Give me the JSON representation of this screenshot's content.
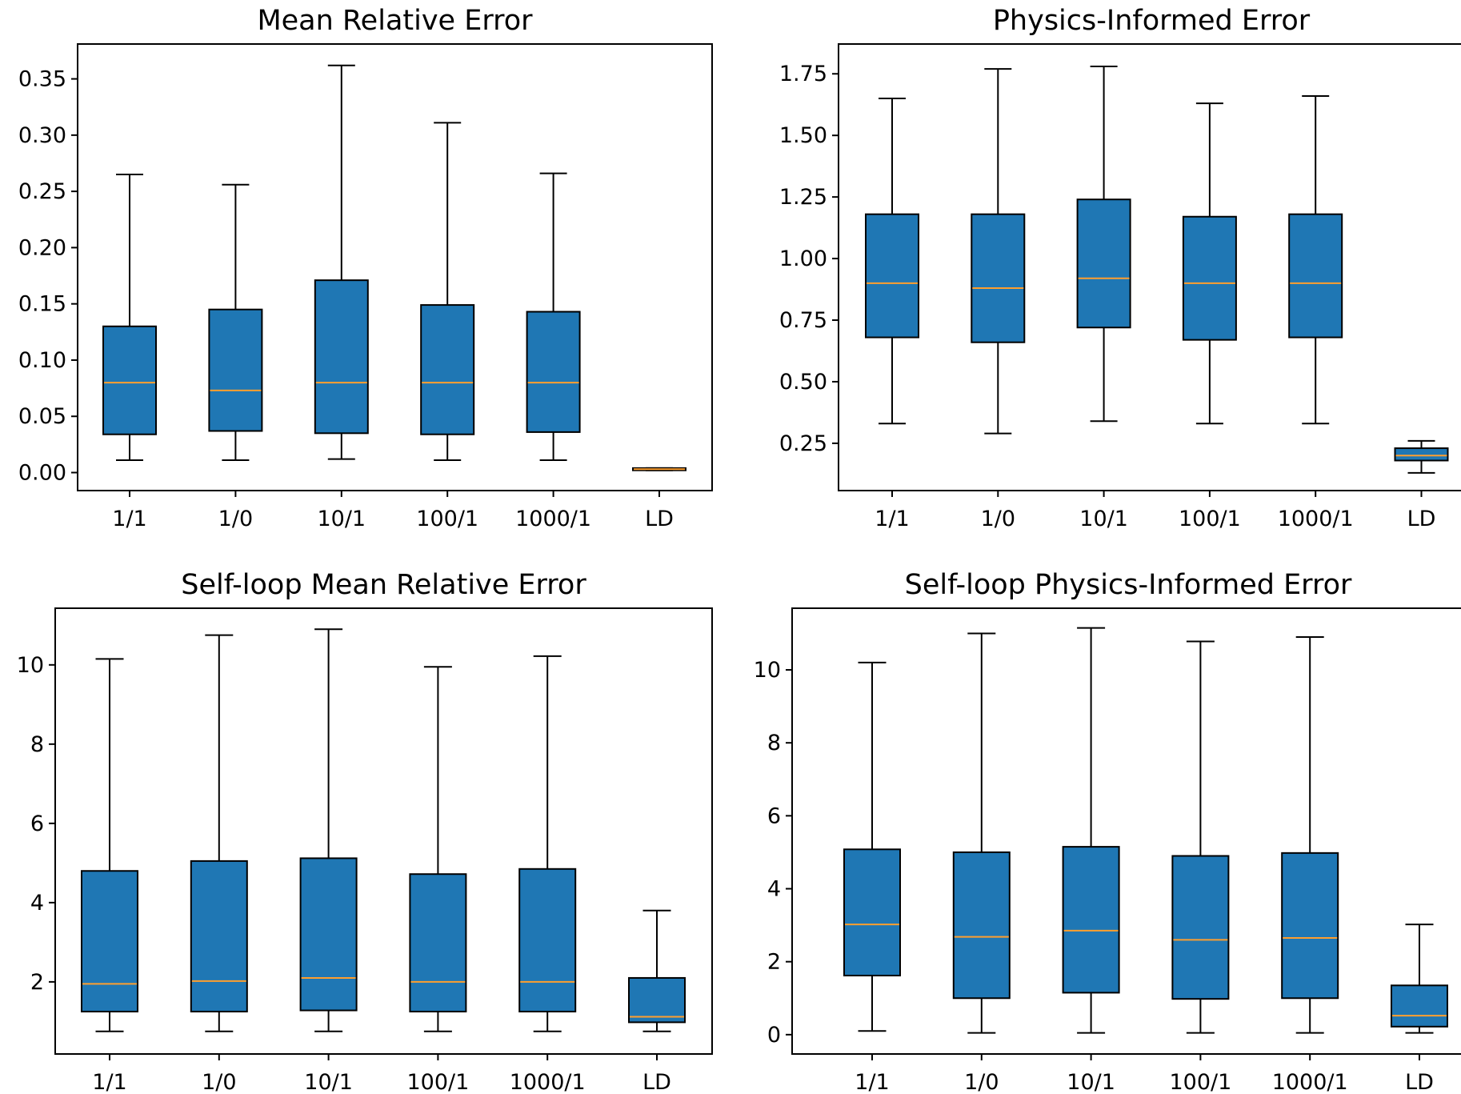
{
  "chart_data": [
    {
      "type": "box",
      "title": "Mean Relative Error",
      "categories": [
        "1/1",
        "1/0",
        "10/1",
        "100/1",
        "1000/1",
        "LD"
      ],
      "yticks": [
        "0.00",
        "0.05",
        "0.10",
        "0.15",
        "0.20",
        "0.25",
        "0.30",
        "0.35"
      ],
      "ylim": [
        -0.016,
        0.381
      ],
      "boxes": [
        {
          "whislo": 0.011,
          "q1": 0.034,
          "med": 0.08,
          "q3": 0.13,
          "whishi": 0.265
        },
        {
          "whislo": 0.011,
          "q1": 0.037,
          "med": 0.073,
          "q3": 0.145,
          "whishi": 0.256
        },
        {
          "whislo": 0.012,
          "q1": 0.035,
          "med": 0.08,
          "q3": 0.171,
          "whishi": 0.362
        },
        {
          "whislo": 0.011,
          "q1": 0.034,
          "med": 0.08,
          "q3": 0.149,
          "whishi": 0.311
        },
        {
          "whislo": 0.011,
          "q1": 0.036,
          "med": 0.08,
          "q3": 0.143,
          "whishi": 0.266
        },
        {
          "whislo": 0.002,
          "q1": 0.002,
          "med": 0.003,
          "q3": 0.004,
          "whishi": 0.004
        }
      ]
    },
    {
      "type": "box",
      "title": "Physics-Informed Error",
      "categories": [
        "1/1",
        "1/0",
        "10/1",
        "100/1",
        "1000/1",
        "LD"
      ],
      "yticks": [
        "0.25",
        "0.50",
        "0.75",
        "1.00",
        "1.25",
        "1.50",
        "1.75"
      ],
      "ylim": [
        0.058,
        1.871
      ],
      "boxes": [
        {
          "whislo": 0.33,
          "q1": 0.68,
          "med": 0.9,
          "q3": 1.18,
          "whishi": 1.65
        },
        {
          "whislo": 0.29,
          "q1": 0.66,
          "med": 0.88,
          "q3": 1.18,
          "whishi": 1.77
        },
        {
          "whislo": 0.34,
          "q1": 0.72,
          "med": 0.92,
          "q3": 1.24,
          "whishi": 1.78
        },
        {
          "whislo": 0.33,
          "q1": 0.67,
          "med": 0.9,
          "q3": 1.17,
          "whishi": 1.63
        },
        {
          "whislo": 0.33,
          "q1": 0.68,
          "med": 0.9,
          "q3": 1.18,
          "whishi": 1.66
        },
        {
          "whislo": 0.13,
          "q1": 0.18,
          "med": 0.2,
          "q3": 0.23,
          "whishi": 0.26
        }
      ]
    },
    {
      "type": "box",
      "title": "Self-loop Mean Relative Error",
      "categories": [
        "1/1",
        "1/0",
        "10/1",
        "100/1",
        "1000/1",
        "LD"
      ],
      "yticks": [
        "2",
        "4",
        "6",
        "8",
        "10"
      ],
      "ylim": [
        0.18,
        11.43
      ],
      "boxes": [
        {
          "whislo": 0.75,
          "q1": 1.25,
          "med": 1.95,
          "q3": 4.8,
          "whishi": 10.15
        },
        {
          "whislo": 0.75,
          "q1": 1.25,
          "med": 2.02,
          "q3": 5.05,
          "whishi": 10.75
        },
        {
          "whislo": 0.75,
          "q1": 1.28,
          "med": 2.1,
          "q3": 5.12,
          "whishi": 10.9
        },
        {
          "whislo": 0.75,
          "q1": 1.25,
          "med": 2.0,
          "q3": 4.72,
          "whishi": 9.95
        },
        {
          "whislo": 0.75,
          "q1": 1.25,
          "med": 2.0,
          "q3": 4.85,
          "whishi": 10.22
        },
        {
          "whislo": 0.75,
          "q1": 0.98,
          "med": 1.12,
          "q3": 2.1,
          "whishi": 3.8
        }
      ]
    },
    {
      "type": "box",
      "title": "Self-loop Physics-Informed Error",
      "categories": [
        "1/1",
        "1/0",
        "10/1",
        "100/1",
        "1000/1",
        "LD"
      ],
      "yticks": [
        "0",
        "2",
        "4",
        "6",
        "8",
        "10"
      ],
      "ylim": [
        -0.53,
        11.69
      ],
      "boxes": [
        {
          "whislo": 0.1,
          "q1": 1.62,
          "med": 3.02,
          "q3": 5.08,
          "whishi": 10.2
        },
        {
          "whislo": 0.05,
          "q1": 1.0,
          "med": 2.68,
          "q3": 5.0,
          "whishi": 11.0
        },
        {
          "whislo": 0.05,
          "q1": 1.15,
          "med": 2.85,
          "q3": 5.15,
          "whishi": 11.15
        },
        {
          "whislo": 0.05,
          "q1": 0.98,
          "med": 2.6,
          "q3": 4.9,
          "whishi": 10.78
        },
        {
          "whislo": 0.05,
          "q1": 1.0,
          "med": 2.65,
          "q3": 4.98,
          "whishi": 10.9
        },
        {
          "whislo": 0.05,
          "q1": 0.22,
          "med": 0.52,
          "q3": 1.35,
          "whishi": 3.02
        }
      ]
    }
  ]
}
